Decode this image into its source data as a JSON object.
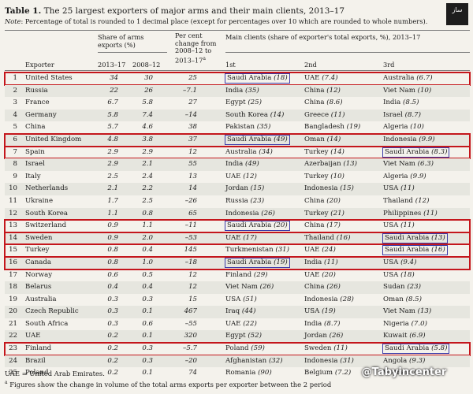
{
  "title_prefix": "Table 1.",
  "title_text": "The 25 largest exporters of major arms and their main clients, 2013–17",
  "note_prefix": "Note",
  "note_text": ": Percentage of total is rounded to 1 decimal place (except for percentages over 10 which are rounded to whole numbers).",
  "logo_text": "ساز",
  "header": {
    "exporter": "Exporter",
    "share_title": "Share of arms exports (%)",
    "share_y1": "2013–17",
    "share_y2": "2008–12",
    "change_title": "Per cent change from 2008–12 to 2013–17",
    "change_sup": "a",
    "clients_title": "Main clients  (share of exporter's total exports, %), 2013–17",
    "first": "1st",
    "second": "2nd",
    "third": "3rd"
  },
  "rows": [
    {
      "rank": "1",
      "country": "United States",
      "s1": "34",
      "s2": "30",
      "ch": "25",
      "k1": "Saudi Arabia",
      "p1": "18",
      "k2": "UAE",
      "p2": "7.4",
      "k3": "Australia",
      "p3": "6.7"
    },
    {
      "rank": "2",
      "country": "Russia",
      "s1": "22",
      "s2": "26",
      "ch": "–7.1",
      "k1": "India",
      "p1": "35",
      "k2": "China",
      "p2": "12",
      "k3": "Viet Nam",
      "p3": "10"
    },
    {
      "rank": "3",
      "country": "France",
      "s1": "6.7",
      "s2": "5.8",
      "ch": "27",
      "k1": "Egypt",
      "p1": "25",
      "k2": "China",
      "p2": "8.6",
      "k3": "India",
      "p3": "8.5"
    },
    {
      "rank": "4",
      "country": "Germany",
      "s1": "5.8",
      "s2": "7.4",
      "ch": "–14",
      "k1": "South Korea",
      "p1": "14",
      "k2": "Greece",
      "p2": "11",
      "k3": "Israel",
      "p3": "8.7"
    },
    {
      "rank": "5",
      "country": "China",
      "s1": "5.7",
      "s2": "4.6",
      "ch": "38",
      "k1": "Pakistan",
      "p1": "35",
      "k2": "Bangladesh",
      "p2": "19",
      "k3": "Algeria",
      "p3": "10"
    },
    {
      "rank": "6",
      "country": "United Kingdom",
      "s1": "4.8",
      "s2": "3.8",
      "ch": "37",
      "k1": "Saudi Arabia",
      "p1": "49",
      "k2": "Oman",
      "p2": "14",
      "k3": "Indonesia",
      "p3": "9.9"
    },
    {
      "rank": "7",
      "country": "Spain",
      "s1": "2.9",
      "s2": "2.9",
      "ch": "12",
      "k1": "Australia",
      "p1": "34",
      "k2": "Turkey",
      "p2": "14",
      "k3": "Saudi Arabia",
      "p3": "8.3"
    },
    {
      "rank": "8",
      "country": "Israel",
      "s1": "2.9",
      "s2": "2.1",
      "ch": "55",
      "k1": "India",
      "p1": "49",
      "k2": "Azerbaijan",
      "p2": "13",
      "k3": "Viet Nam",
      "p3": "6.3"
    },
    {
      "rank": "9",
      "country": "Italy",
      "s1": "2.5",
      "s2": "2.4",
      "ch": "13",
      "k1": "UAE",
      "p1": "12",
      "k2": "Turkey",
      "p2": "10",
      "k3": "Algeria",
      "p3": "9.9"
    },
    {
      "rank": "10",
      "country": "Netherlands",
      "s1": "2.1",
      "s2": "2.2",
      "ch": "14",
      "k1": "Jordan",
      "p1": "15",
      "k2": "Indonesia",
      "p2": "15",
      "k3": "USA",
      "p3": "11"
    },
    {
      "rank": "11",
      "country": "Ukraine",
      "s1": "1.7",
      "s2": "2.5",
      "ch": "–26",
      "k1": "Russia",
      "p1": "23",
      "k2": "China",
      "p2": "20",
      "k3": "Thailand",
      "p3": "12"
    },
    {
      "rank": "12",
      "country": "South Korea",
      "s1": "1.1",
      "s2": "0.8",
      "ch": "65",
      "k1": "Indonesia",
      "p1": "26",
      "k2": "Turkey",
      "p2": "21",
      "k3": "Philippines",
      "p3": "11"
    },
    {
      "rank": "13",
      "country": "Switzerland",
      "s1": "0.9",
      "s2": "1.1",
      "ch": "–11",
      "k1": "Saudi Arabia",
      "p1": "20",
      "k2": "China",
      "p2": "17",
      "k3": "USA",
      "p3": "11"
    },
    {
      "rank": "14",
      "country": "Sweden",
      "s1": "0.9",
      "s2": "2.0",
      "ch": "–53",
      "k1": "UAE",
      "p1": "17",
      "k2": "Thailand",
      "p2": "16",
      "k3": "Saudi Arabia",
      "p3": "13"
    },
    {
      "rank": "15",
      "country": "Turkey",
      "s1": "0.8",
      "s2": "0.4",
      "ch": "145",
      "k1": "Turkmenistan",
      "p1": "31",
      "k2": "UAE",
      "p2": "24",
      "k3": "Saudi Arabia",
      "p3": "16"
    },
    {
      "rank": "16",
      "country": "Canada",
      "s1": "0.8",
      "s2": "1.0",
      "ch": "–18",
      "k1": "Saudi Arabia",
      "p1": "19",
      "k2": "India",
      "p2": "11",
      "k3": "USA",
      "p3": "9.4"
    },
    {
      "rank": "17",
      "country": "Norway",
      "s1": "0.6",
      "s2": "0.5",
      "ch": "12",
      "k1": "Finland",
      "p1": "29",
      "k2": "UAE",
      "p2": "20",
      "k3": "USA",
      "p3": "18"
    },
    {
      "rank": "18",
      "country": "Belarus",
      "s1": "0.4",
      "s2": "0.4",
      "ch": "12",
      "k1": "Viet Nam",
      "p1": "26",
      "k2": "China",
      "p2": "26",
      "k3": "Sudan",
      "p3": "23"
    },
    {
      "rank": "19",
      "country": "Australia",
      "s1": "0.3",
      "s2": "0.3",
      "ch": "15",
      "k1": "USA",
      "p1": "51",
      "k2": "Indonesia",
      "p2": "28",
      "k3": "Oman",
      "p3": "8.5"
    },
    {
      "rank": "20",
      "country": "Czech Republic",
      "s1": "0.3",
      "s2": "0.1",
      "ch": "467",
      "k1": "Iraq",
      "p1": "44",
      "k2": "USA",
      "p2": "19",
      "k3": "Viet Nam",
      "p3": "13"
    },
    {
      "rank": "21",
      "country": "South Africa",
      "s1": "0.3",
      "s2": "0.6",
      "ch": "–55",
      "k1": "UAE",
      "p1": "22",
      "k2": "India",
      "p2": "8.7",
      "k3": "Nigeria",
      "p3": "7.0"
    },
    {
      "rank": "22",
      "country": "UAE",
      "s1": "0.2",
      "s2": "0.1",
      "ch": "320",
      "k1": "Egypt",
      "p1": "52",
      "k2": "Jordan",
      "p2": "26",
      "k3": "Kuwait",
      "p3": "6.9"
    },
    {
      "rank": "23",
      "country": "Finland",
      "s1": "0.2",
      "s2": "0.3",
      "ch": "–5.7",
      "k1": "Poland",
      "p1": "59",
      "k2": "Sweden",
      "p2": "11",
      "k3": "Saudi Arabia",
      "p3": "5.8"
    },
    {
      "rank": "24",
      "country": "Brazil",
      "s1": "0.2",
      "s2": "0.3",
      "ch": "–20",
      "k1": "Afghanistan",
      "p1": "32",
      "k2": "Indonesia",
      "p2": "31",
      "k3": "Angola",
      "p3": "9.3"
    },
    {
      "rank": "25",
      "country": "Poland",
      "s1": "0.2",
      "s2": "0.1",
      "ch": "74",
      "k1": "Romania",
      "p1": "90",
      "k2": "Belgium",
      "p2": "7.2",
      "k3": "Vietnam",
      "p3": "0.7"
    }
  ],
  "highlight_rows": [
    "1",
    "6",
    "7",
    "13",
    "14",
    "15",
    "16",
    "23"
  ],
  "footnote_abbrev": "UAE = United Arab Emirates.",
  "footnote_a_sup": "a",
  "footnote_a": " Figures show the change in volume of the total arms exports per exporter between the 2 period",
  "watermark": "@Tabyincenter",
  "colors": {
    "row_highlight": "#c4161c",
    "cell_highlight": "#3a3aa8",
    "alt_row": "#e6e6df"
  }
}
